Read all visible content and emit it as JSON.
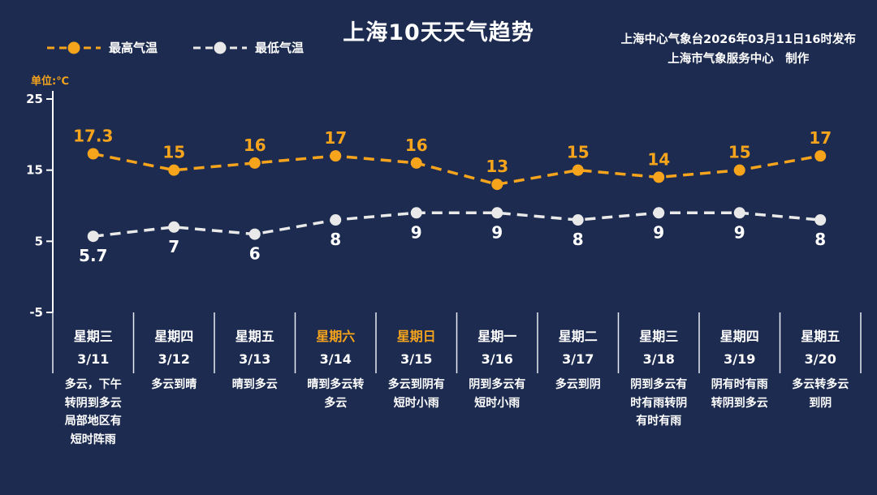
{
  "header": {
    "title": "上海10天天气趋势",
    "publisher_line1": "上海中心气象台2026年03月11日16时发布",
    "publisher_line2": "上海市气象服务中心　制作"
  },
  "legend": {
    "high_label": "最高气温",
    "low_label": "最低气温"
  },
  "unit_label": "单位:℃",
  "colors": {
    "background": "#1c2b4f",
    "accent_orange": "#f7a41d",
    "line_low": "#e9e9e9",
    "text_white": "#ffffff"
  },
  "chart_data": {
    "type": "line",
    "title": "上海10天天气趋势",
    "categories": [
      "3/11",
      "3/12",
      "3/13",
      "3/14",
      "3/15",
      "3/16",
      "3/17",
      "3/18",
      "3/19",
      "3/20"
    ],
    "weekdays": [
      "星期三",
      "星期四",
      "星期五",
      "星期六",
      "星期日",
      "星期一",
      "星期二",
      "星期三",
      "星期四",
      "星期五"
    ],
    "weekend_flags": [
      false,
      false,
      false,
      true,
      true,
      false,
      false,
      false,
      false,
      false
    ],
    "descriptions": [
      "多云，下午转阴到多云局部地区有短时阵雨",
      "多云到晴",
      "晴到多云",
      "晴到多云转多云",
      "多云到阴有短时小雨",
      "阴到多云有短时小雨",
      "多云到阴",
      "阴到多云有时有雨转阴有时有雨",
      "阴有时有雨转阴到多云",
      "多云转多云到阴"
    ],
    "series": [
      {
        "name": "最高气温",
        "values": [
          17.3,
          15,
          16,
          17,
          16,
          13,
          15,
          14,
          15,
          17
        ],
        "color": "#f7a41d",
        "label_color": "#f7a41d"
      },
      {
        "name": "最低气温",
        "values": [
          5.7,
          7,
          6,
          8,
          9,
          9,
          8,
          9,
          9,
          8
        ],
        "color": "#e9e9e9",
        "label_color": "#ffffff"
      }
    ],
    "ylabel": "单位:℃",
    "ylim": [
      -5,
      25
    ],
    "yticks": [
      25,
      15,
      5,
      -5
    ],
    "grid": false,
    "legend_position": "top-left",
    "line_style": "dashed"
  }
}
